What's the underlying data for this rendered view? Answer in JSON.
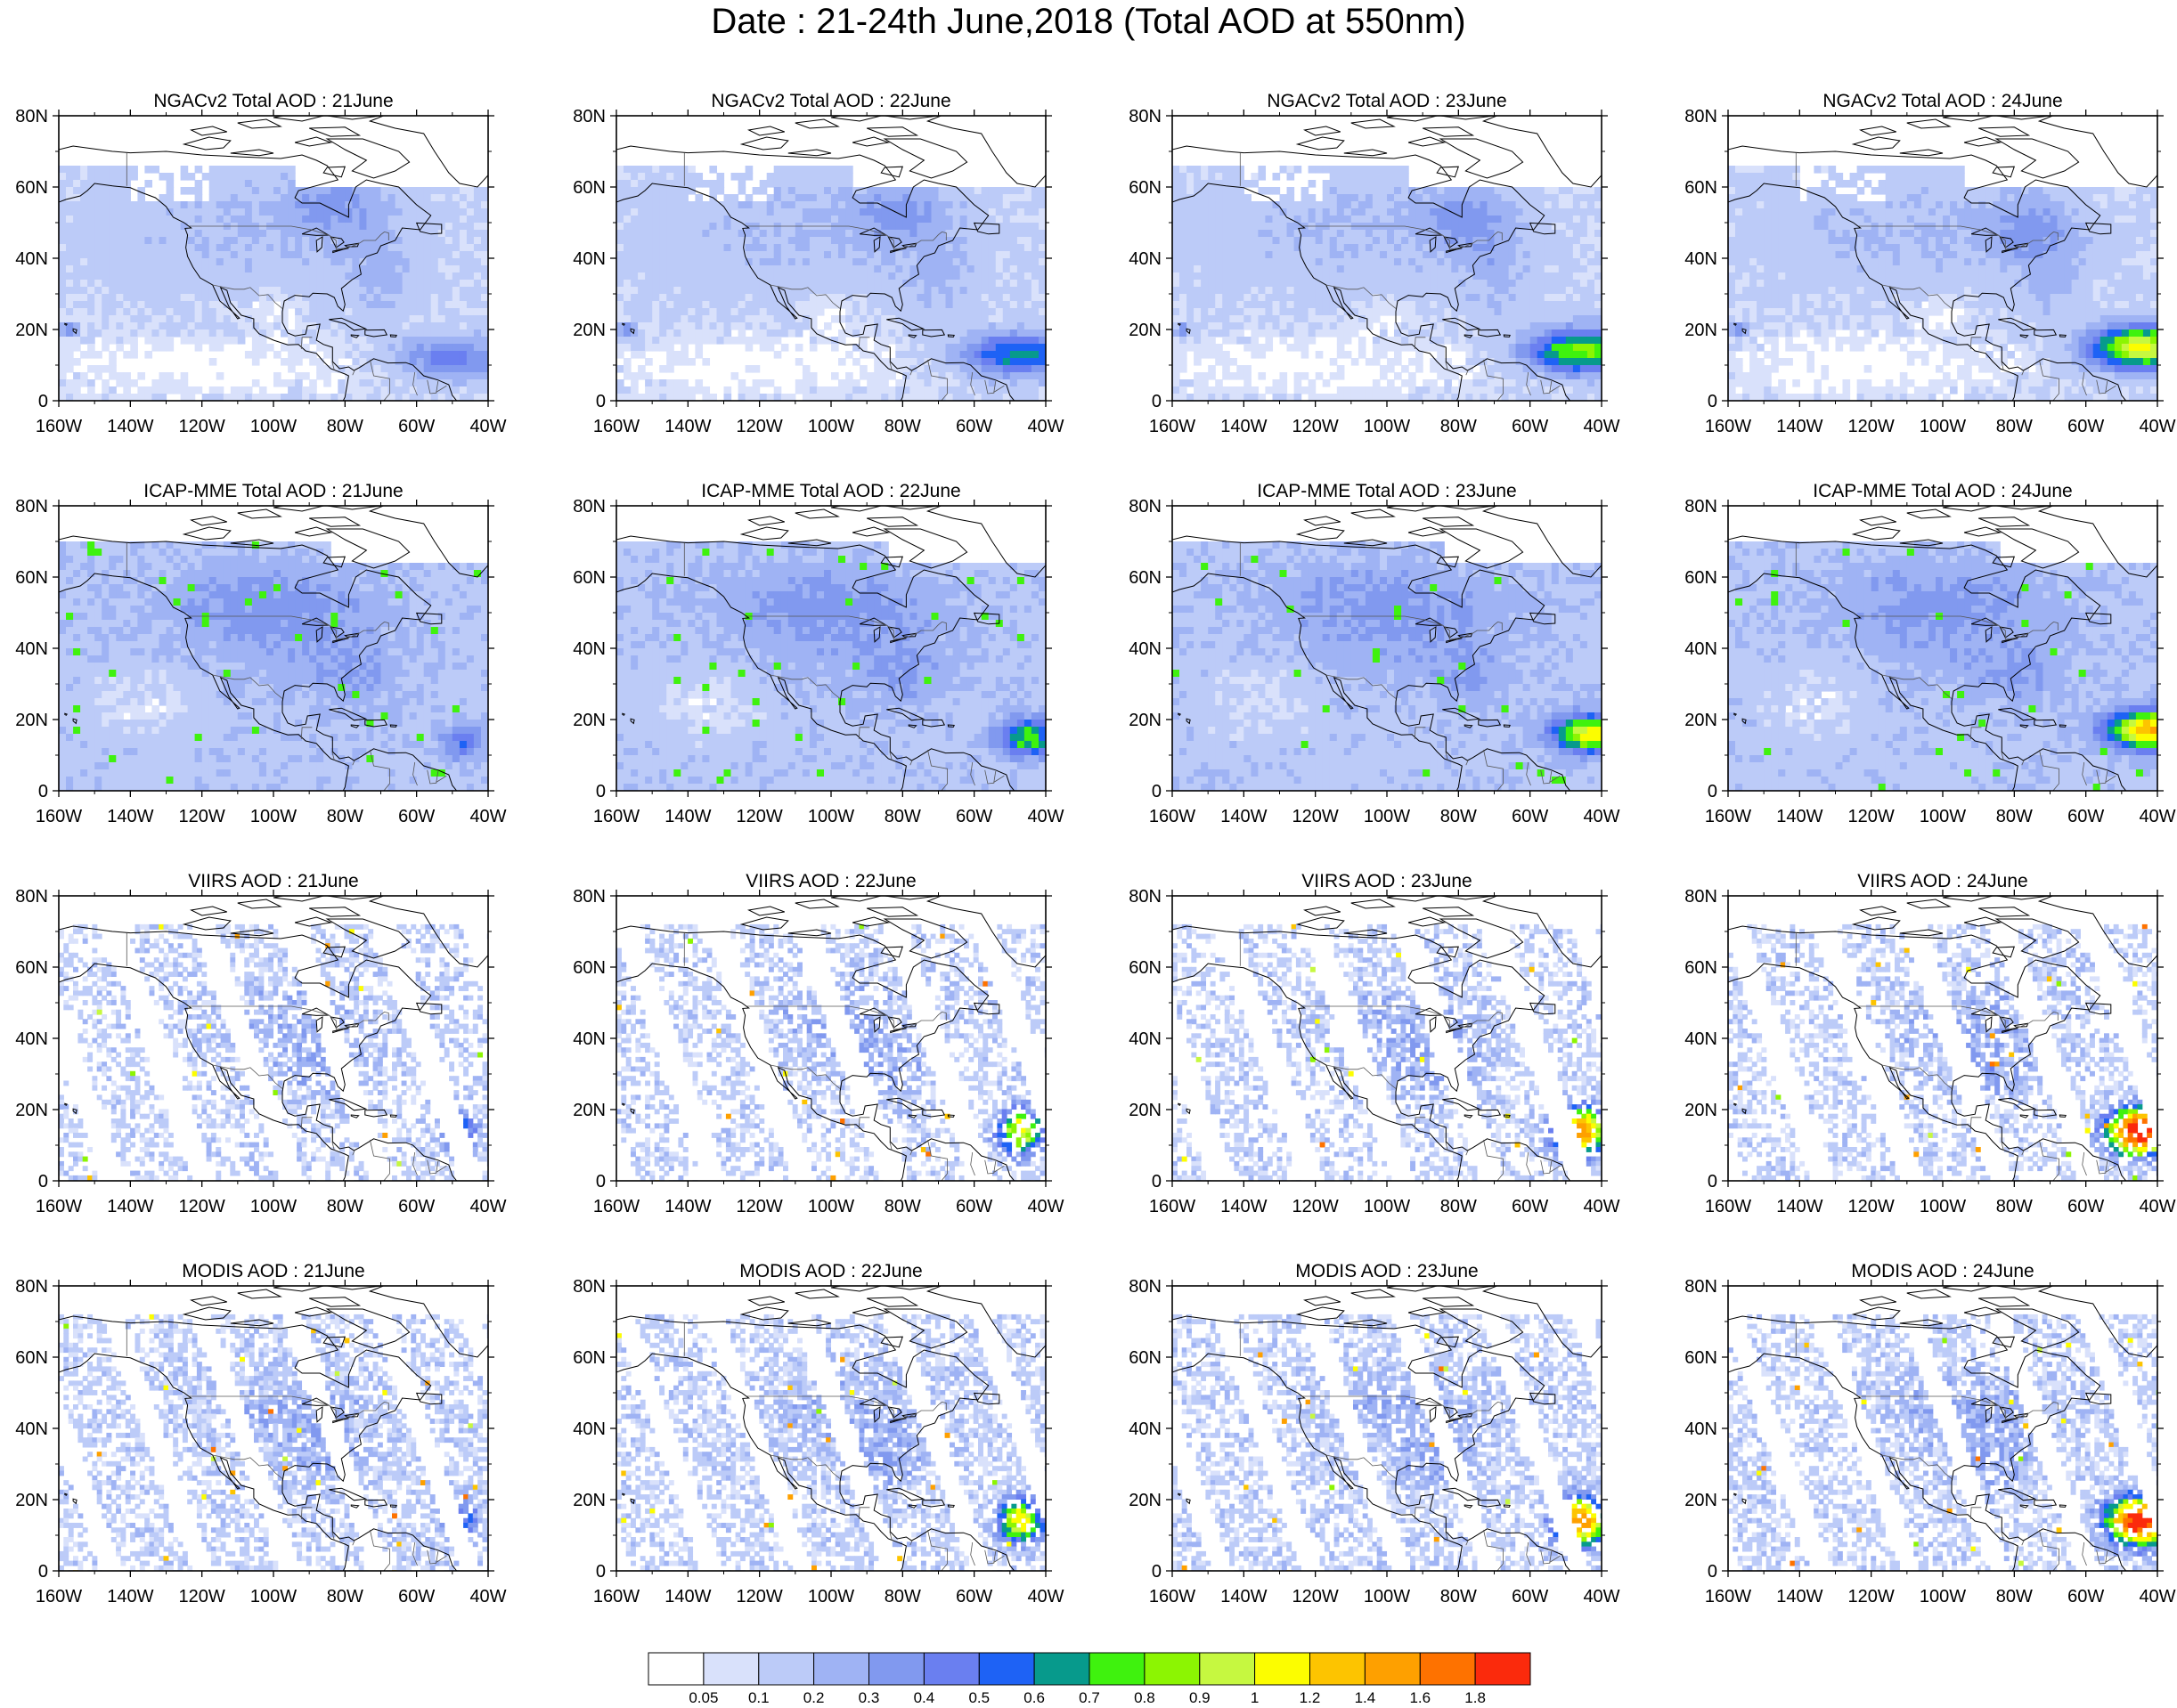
{
  "title": "Date : 21-24th June,2018 (Total AOD at 550nm)",
  "panels": [
    {
      "title": "NGACv2 Total AOD : 21June",
      "source": "ngac",
      "day": 21
    },
    {
      "title": "NGACv2 Total AOD : 22June",
      "source": "ngac",
      "day": 22
    },
    {
      "title": "NGACv2 Total AOD : 23June",
      "source": "ngac",
      "day": 23
    },
    {
      "title": "NGACv2 Total AOD : 24June",
      "source": "ngac",
      "day": 24
    },
    {
      "title": "ICAP-MME Total AOD : 21June",
      "source": "icap",
      "day": 21
    },
    {
      "title": "ICAP-MME Total AOD : 22June",
      "source": "icap",
      "day": 22
    },
    {
      "title": "ICAP-MME Total AOD : 23June",
      "source": "icap",
      "day": 23
    },
    {
      "title": "ICAP-MME Total AOD : 24June",
      "source": "icap",
      "day": 24
    },
    {
      "title": "VIIRS AOD : 21June",
      "source": "viirs",
      "day": 21
    },
    {
      "title": "VIIRS AOD : 22June",
      "source": "viirs",
      "day": 22
    },
    {
      "title": "VIIRS AOD : 23June",
      "source": "viirs",
      "day": 23
    },
    {
      "title": "VIIRS AOD : 24June",
      "source": "viirs",
      "day": 24
    },
    {
      "title": "MODIS AOD : 21June",
      "source": "modis",
      "day": 21
    },
    {
      "title": "MODIS AOD : 22June",
      "source": "modis",
      "day": 22
    },
    {
      "title": "MODIS AOD : 23June",
      "source": "modis",
      "day": 23
    },
    {
      "title": "MODIS AOD : 24June",
      "source": "modis",
      "day": 24
    }
  ],
  "axes": {
    "lon_ticks": [
      "160W",
      "140W",
      "120W",
      "100W",
      "80W",
      "60W",
      "40W"
    ],
    "lat_ticks": [
      "80N",
      "60N",
      "40N",
      "20N",
      "0"
    ],
    "lon_range": [
      -160,
      -40
    ],
    "lat_range": [
      0,
      80
    ]
  },
  "colorbar": {
    "labels": [
      "0.05",
      "0.1",
      "0.2",
      "0.3",
      "0.4",
      "0.5",
      "0.6",
      "0.7",
      "0.8",
      "0.9",
      "1",
      "1.2",
      "1.4",
      "1.6",
      "1.8"
    ],
    "colors": [
      "#ffffff",
      "#d9e1fb",
      "#bccbf8",
      "#9fb3f4",
      "#8199ef",
      "#6a7ff0",
      "#1e62f5",
      "#079a8c",
      "#3ff20e",
      "#8cf502",
      "#c6f840",
      "#fcfd00",
      "#fdc400",
      "#fea000",
      "#fe7200",
      "#fb2a0c"
    ]
  }
}
